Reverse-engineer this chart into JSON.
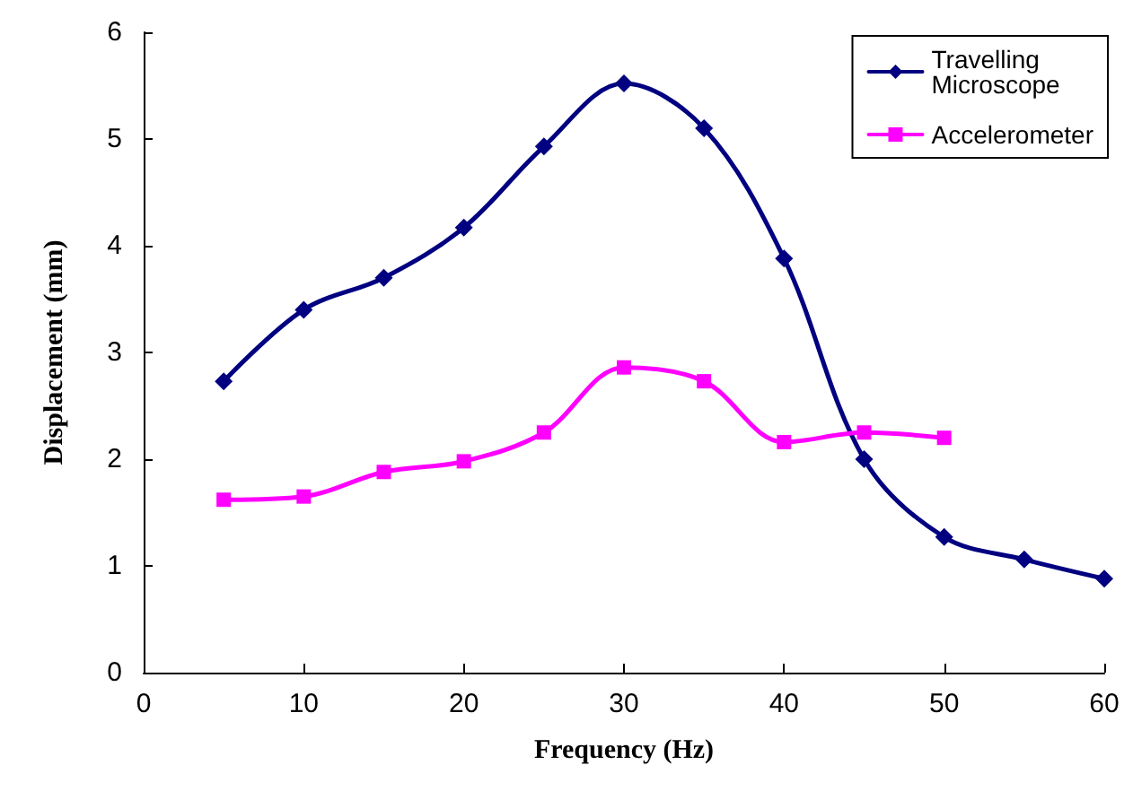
{
  "chart_data": {
    "type": "line",
    "xlabel": "Frequency (Hz)",
    "ylabel": "Displacement (mm)",
    "xlim": [
      0,
      60
    ],
    "xticks": [
      0,
      10,
      20,
      30,
      40,
      50,
      60
    ],
    "ylim": [
      0,
      6
    ],
    "yticks": [
      0,
      1,
      2,
      3,
      4,
      5,
      6
    ],
    "grid": false,
    "legend": "top right",
    "series": [
      {
        "name": "Travelling Microscope",
        "color": "#000080",
        "marker": "diamond",
        "x": [
          5,
          10,
          15,
          20,
          25,
          30,
          35,
          40,
          45,
          50,
          55,
          60
        ],
        "values": [
          2.73,
          3.4,
          3.7,
          4.17,
          4.93,
          5.52,
          5.1,
          3.88,
          2.0,
          1.27,
          1.06,
          0.88
        ]
      },
      {
        "name": "Accelerometer",
        "color": "#ff00ff",
        "marker": "square",
        "x": [
          5,
          10,
          15,
          20,
          25,
          30,
          35,
          40,
          45,
          50
        ],
        "values": [
          1.62,
          1.65,
          1.88,
          1.98,
          2.25,
          2.86,
          2.73,
          2.16,
          2.25,
          2.2
        ]
      }
    ]
  }
}
